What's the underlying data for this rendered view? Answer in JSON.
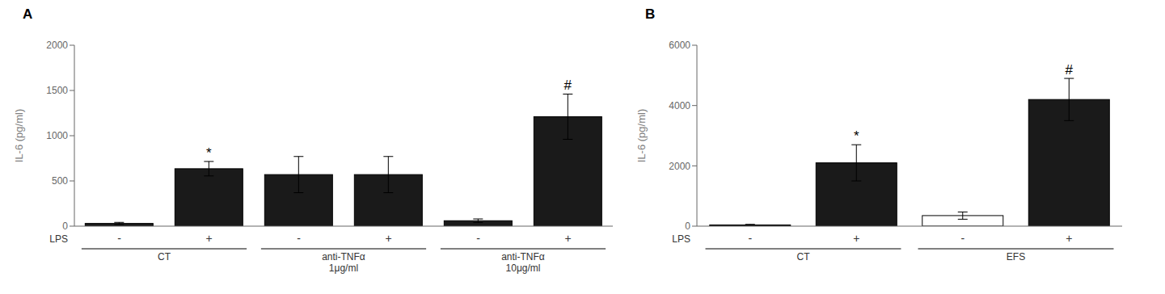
{
  "chart_data": [
    {
      "type": "bar",
      "title": "A",
      "ylabel": "IL-6 (pg/ml)",
      "xlabel": "LPS",
      "categories": [
        "-",
        "+",
        "-",
        "+",
        "-",
        "+"
      ],
      "groups": [
        "CT",
        "anti-TNFα\n1μg/ml",
        "anti-TNFα\n10μg/ml"
      ],
      "values": [
        30,
        635,
        570,
        570,
        60,
        1210
      ],
      "errors": [
        12,
        80,
        200,
        200,
        20,
        250
      ],
      "annotations": [
        null,
        "*",
        null,
        null,
        null,
        "#"
      ],
      "colors": [
        "#1a1a1a",
        "#1a1a1a",
        "#1a1a1a",
        "#1a1a1a",
        "#1a1a1a",
        "#1a1a1a"
      ],
      "ylim": [
        0,
        2000
      ],
      "yticks": [
        0,
        500,
        1000,
        1500,
        2000
      ],
      "grid": false
    },
    {
      "type": "bar",
      "title": "B",
      "ylabel": "IL-6 (pg/ml)",
      "xlabel": "LPS",
      "categories": [
        "-",
        "+",
        "-",
        "+"
      ],
      "groups": [
        "CT",
        "EFS"
      ],
      "values": [
        40,
        2100,
        350,
        4200
      ],
      "errors": [
        20,
        600,
        120,
        700
      ],
      "annotations": [
        null,
        "*",
        null,
        "#"
      ],
      "colors": [
        "#1a1a1a",
        "#1a1a1a",
        "#ffffff",
        "#1a1a1a"
      ],
      "ylim": [
        0,
        6000
      ],
      "yticks": [
        0,
        2000,
        4000,
        6000
      ],
      "grid": false
    }
  ]
}
